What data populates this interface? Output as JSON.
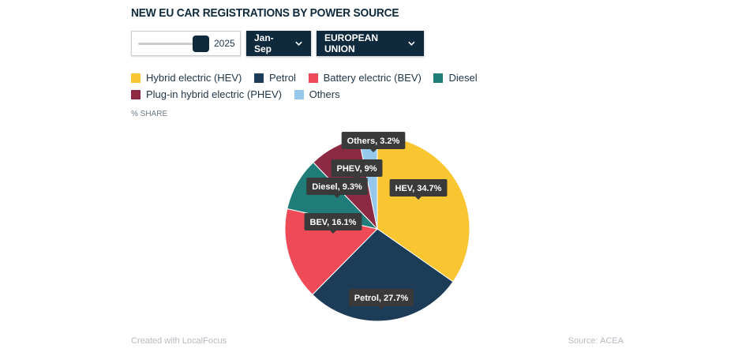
{
  "title": "NEW EU CAR REGISTRATIONS BY POWER SOURCE",
  "controls": {
    "year": "2025",
    "period": "Jan-Sep",
    "region": "EUROPEAN UNION"
  },
  "legend": [
    {
      "label": "Hybrid electric (HEV)",
      "color": "#f9c531"
    },
    {
      "label": "Petrol",
      "color": "#1c3c58"
    },
    {
      "label": "Battery electric (BEV)",
      "color": "#ee4a57"
    },
    {
      "label": "Diesel",
      "color": "#1f7c78"
    },
    {
      "label": "Plug-in hybrid electric (PHEV)",
      "color": "#8c2a43"
    },
    {
      "label": "Others",
      "color": "#96c8eb"
    }
  ],
  "unit_label": "% SHARE",
  "chart_data": {
    "type": "pie",
    "slices": [
      {
        "name": "HEV",
        "value": 34.7,
        "label": "HEV, 34.7%",
        "color": "#f9c531"
      },
      {
        "name": "Petrol",
        "value": 27.7,
        "label": "Petrol, 27.7%",
        "color": "#1c3c58"
      },
      {
        "name": "BEV",
        "value": 16.1,
        "label": "BEV, 16.1%",
        "color": "#ee4a57"
      },
      {
        "name": "Diesel",
        "value": 9.3,
        "label": "Diesel, 9.3%",
        "color": "#1f7c78"
      },
      {
        "name": "PHEV",
        "value": 9.0,
        "label": "PHEV, 9%",
        "color": "#8c2a43"
      },
      {
        "name": "Others",
        "value": 3.2,
        "label": "Others, 3.2%",
        "color": "#96c8eb"
      }
    ]
  },
  "footer": {
    "credit": "Created with LocalFocus",
    "source": "Source: ACEA"
  }
}
